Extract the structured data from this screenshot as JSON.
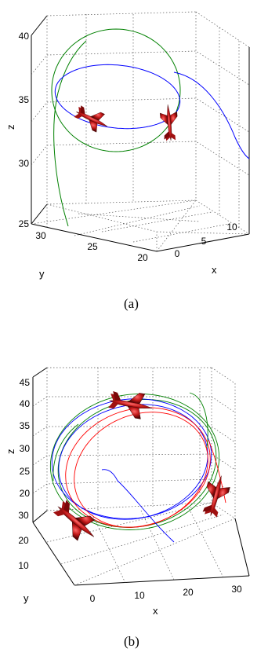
{
  "chart_data": [
    {
      "type": "line3d",
      "caption": "(a)",
      "xlabel": "x",
      "ylabel": "y",
      "zlabel": "z",
      "xticks": [
        "0",
        "5",
        "10"
      ],
      "yticks": [
        "30",
        "25",
        "20"
      ],
      "zticks": [
        "25",
        "30",
        "35",
        "40"
      ],
      "xlim": [
        -3,
        11
      ],
      "ylim": [
        18,
        32
      ],
      "zlim": [
        25,
        41
      ],
      "series": [
        {
          "color": "#008000",
          "description": "green trajectory rising into a vertical circle"
        },
        {
          "color": "#0000ff",
          "description": "blue trajectory entering from right into a horizontal circle near z≈35.5"
        }
      ],
      "aircraft_count": 2,
      "aircraft_color": "#8b1010"
    },
    {
      "type": "line3d",
      "caption": "(b)",
      "xlabel": "x",
      "ylabel": "y",
      "zlabel": "z",
      "xticks": [
        "0",
        "10",
        "20",
        "30"
      ],
      "yticks": [
        "10",
        "20",
        "30"
      ],
      "zticks": [
        "20",
        "25",
        "30",
        "35",
        "40",
        "45"
      ],
      "xlim": [
        -3,
        33
      ],
      "ylim": [
        5,
        38
      ],
      "zlim": [
        16,
        48
      ],
      "series": [
        {
          "color": "#008000",
          "description": "green loop"
        },
        {
          "color": "#0000ff",
          "description": "blue loop with inner spiral"
        },
        {
          "color": "#ff0000",
          "description": "red loop"
        }
      ],
      "aircraft_count": 3,
      "aircraft_color": "#8b1010"
    }
  ]
}
